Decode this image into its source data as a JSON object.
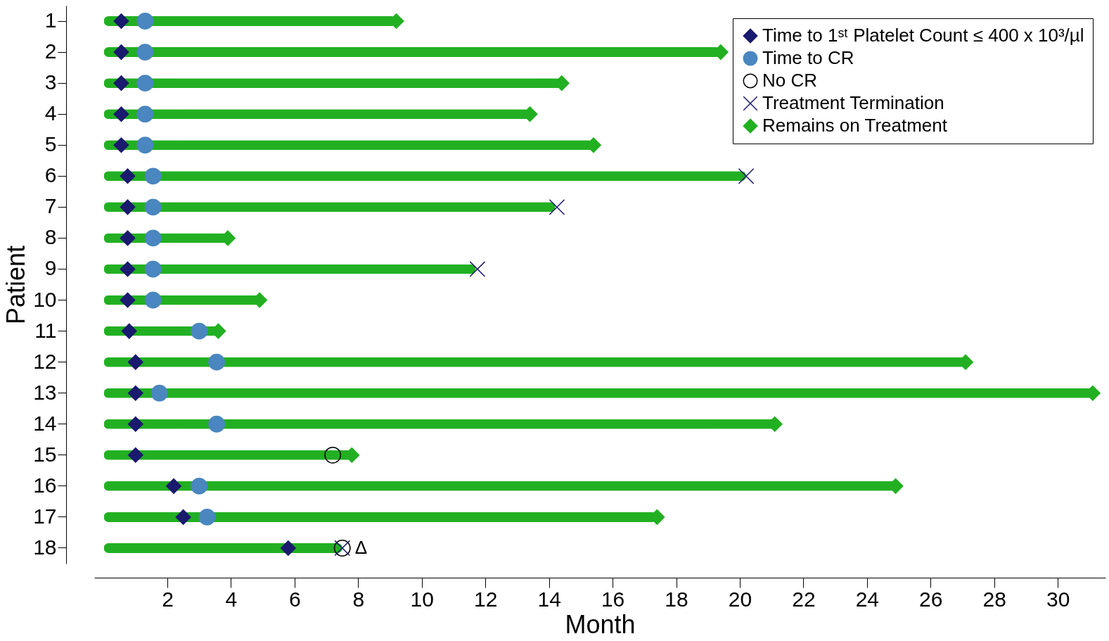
{
  "chart_data": {
    "type": "bar",
    "orientation": "horizontal",
    "xlabel": "Month",
    "ylabel": "Patient",
    "categories": [
      "1",
      "2",
      "3",
      "4",
      "5",
      "6",
      "7",
      "8",
      "9",
      "10",
      "11",
      "12",
      "13",
      "14",
      "15",
      "16",
      "17",
      "18"
    ],
    "series": [
      {
        "color": "#22b022",
        "values": [
          9.2,
          19.4,
          14.4,
          13.4,
          15.4,
          20.2,
          14.2,
          3.9,
          11.7,
          4.9,
          3.6,
          27.1,
          31.1,
          21.1,
          7.8,
          24.9,
          17.4,
          7.5
        ]
      },
      {
        "type": "scatter",
        "name": "Time to 1ˢᵗ Platelet Count ≤ 400 x 10³/µl",
        "color": "#1a1a6e",
        "marker": "diamond",
        "values": [
          0.55,
          0.55,
          0.55,
          0.55,
          0.55,
          0.75,
          0.75,
          0.75,
          0.75,
          0.75,
          0.8,
          1.0,
          1.0,
          1.0,
          1.0,
          2.2,
          2.5,
          5.8
        ]
      },
      {
        "type": "scatter",
        "name": "Time to CR",
        "color": "#4a86bf",
        "marker": "circle",
        "values": [
          1.3,
          1.3,
          1.3,
          1.3,
          1.3,
          1.55,
          1.55,
          1.55,
          1.55,
          1.55,
          3.0,
          3.55,
          1.75,
          3.55,
          null,
          3.0,
          3.25,
          null
        ]
      },
      {
        "type": "scatter",
        "name": "No CR",
        "color": "#000000",
        "marker": "circle",
        "values": [
          null,
          null,
          null,
          null,
          null,
          null,
          null,
          null,
          null,
          null,
          null,
          null,
          null,
          null,
          7.2,
          null,
          null,
          7.5
        ]
      },
      {
        "type": "scatter",
        "name": "Treatment Termination",
        "color": "#1a1a6e",
        "marker": "cross",
        "values": [
          null,
          null,
          null,
          null,
          null,
          20.2,
          14.25,
          null,
          11.75,
          null,
          null,
          null,
          null,
          null,
          null,
          null,
          null,
          7.5
        ]
      },
      {
        "type": "scatter",
        "name": "Remains on Treatment",
        "color": "#22b022",
        "marker": "diamond",
        "values": [
          9.2,
          19.4,
          14.4,
          13.4,
          15.4,
          null,
          null,
          3.9,
          null,
          4.9,
          3.6,
          27.1,
          31.1,
          21.1,
          7.8,
          24.9,
          17.4,
          null
        ]
      }
    ],
    "xlim": [
      -0.3,
      31.5
    ],
    "xticks": [
      2,
      4,
      6,
      8,
      10,
      12,
      14,
      16,
      18,
      20,
      22,
      24,
      26,
      28,
      30
    ],
    "grid": false,
    "legend": "top right",
    "annotations": [
      {
        "text": "Δ",
        "x": 7.5,
        "y": "18"
      }
    ]
  }
}
